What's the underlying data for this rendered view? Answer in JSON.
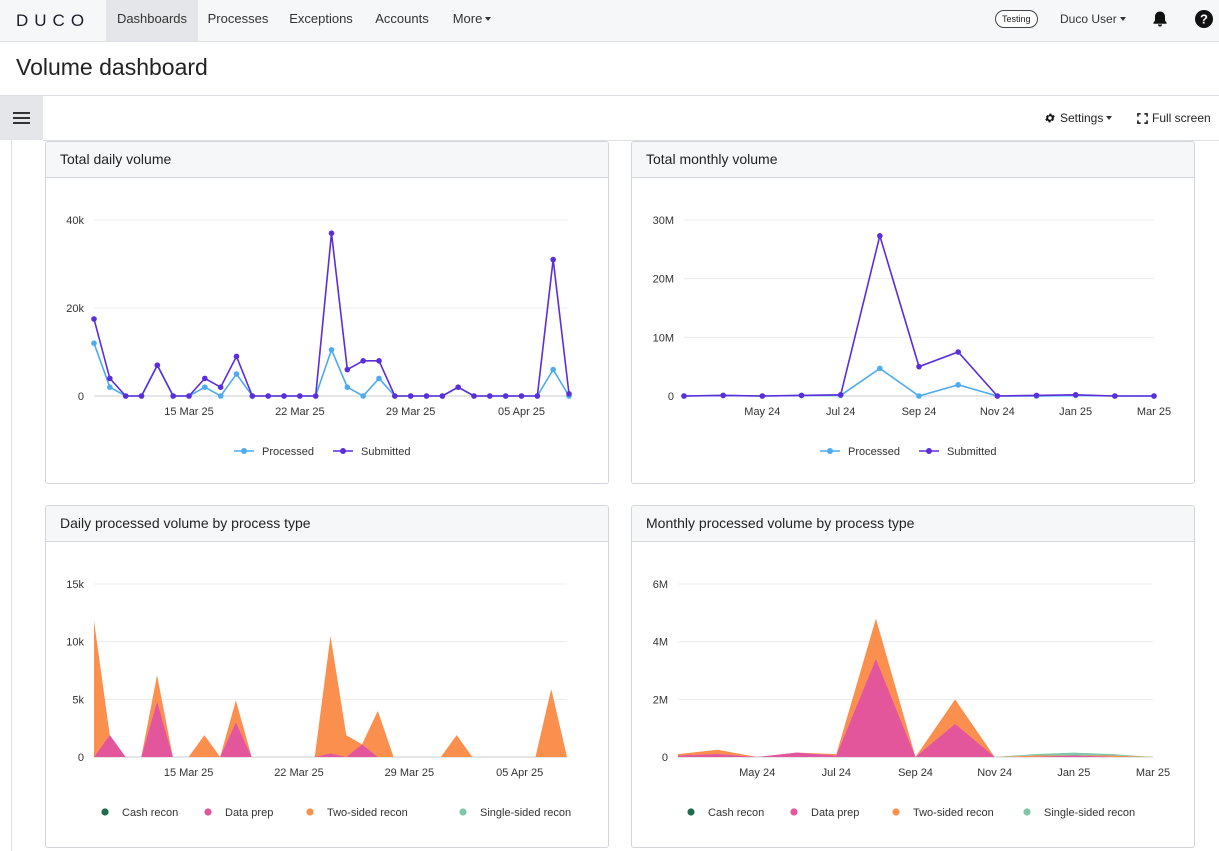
{
  "nav": {
    "logo": "DUCO",
    "tabs": [
      {
        "label": "Dashboards",
        "active": true
      },
      {
        "label": "Processes",
        "active": false
      },
      {
        "label": "Exceptions",
        "active": false
      },
      {
        "label": "Accounts",
        "active": false
      },
      {
        "label": "More",
        "active": false
      }
    ],
    "environment_badge": "Testing",
    "user_menu": "Duco User"
  },
  "page": {
    "title": "Volume dashboard"
  },
  "toolbar": {
    "settings_label": "Settings",
    "fullscreen_label": "Full screen"
  },
  "colors": {
    "processed": "#4dabf0",
    "submitted": "#5b2ed9",
    "cash_recon": "#1e6b4f",
    "data_prep": "#e3569b",
    "two_sided_recon": "#fb8f4e",
    "single_sided_recon": "#7fc7a8"
  },
  "panels": [
    {
      "title": "Total daily volume"
    },
    {
      "title": "Total monthly volume"
    },
    {
      "title": "Daily processed volume by process type"
    },
    {
      "title": "Monthly processed volume by process type"
    }
  ],
  "chart_data": [
    {
      "type": "line",
      "title": "Total daily volume",
      "x": [
        "2025-03-09",
        "2025-03-10",
        "2025-03-11",
        "2025-03-12",
        "2025-03-13",
        "2025-03-14",
        "2025-03-15",
        "2025-03-16",
        "2025-03-17",
        "2025-03-18",
        "2025-03-19",
        "2025-03-20",
        "2025-03-21",
        "2025-03-22",
        "2025-03-23",
        "2025-03-24",
        "2025-03-25",
        "2025-03-26",
        "2025-03-27",
        "2025-03-28",
        "2025-03-29",
        "2025-03-30",
        "2025-03-31",
        "2025-04-01",
        "2025-04-02",
        "2025-04-03",
        "2025-04-04",
        "2025-04-05",
        "2025-04-06",
        "2025-04-07",
        "2025-04-08"
      ],
      "x_ticks": [
        "15 Mar 25",
        "22 Mar 25",
        "29 Mar 25",
        "05 Apr 25"
      ],
      "y_ticks": [
        "0",
        "20k",
        "40k"
      ],
      "ylim": [
        0,
        40000
      ],
      "series": [
        {
          "name": "Processed",
          "values": [
            12000,
            2000,
            0,
            0,
            7000,
            0,
            0,
            2000,
            0,
            5000,
            0,
            0,
            0,
            0,
            0,
            10500,
            2000,
            0,
            4000,
            0,
            0,
            0,
            0,
            2000,
            0,
            0,
            0,
            0,
            0,
            6000,
            0
          ]
        },
        {
          "name": "Submitted",
          "values": [
            17500,
            4000,
            0,
            0,
            7000,
            0,
            0,
            4000,
            2000,
            9000,
            0,
            0,
            0,
            0,
            0,
            37000,
            6000,
            8000,
            8000,
            0,
            0,
            0,
            0,
            2000,
            0,
            0,
            0,
            0,
            0,
            31000,
            500
          ]
        }
      ],
      "legend": "bottom"
    },
    {
      "type": "line",
      "title": "Total monthly volume",
      "x": [
        "2024-03",
        "2024-04",
        "2024-05",
        "2024-06",
        "2024-07",
        "2024-08",
        "2024-09",
        "2024-10",
        "2024-11",
        "2024-12",
        "2025-01",
        "2025-02",
        "2025-03"
      ],
      "x_ticks": [
        "May 24",
        "Jul 24",
        "Sep 24",
        "Nov 24",
        "Jan 25",
        "Mar 25"
      ],
      "y_ticks": [
        "0",
        "10M",
        "20M",
        "30M"
      ],
      "ylim": [
        0,
        30000000
      ],
      "series": [
        {
          "name": "Processed",
          "values": [
            0,
            100000,
            0,
            100000,
            100000,
            4700000,
            0,
            1900000,
            0,
            0,
            100000,
            0,
            0
          ]
        },
        {
          "name": "Submitted",
          "values": [
            0,
            100000,
            0,
            100000,
            200000,
            27300000,
            5000000,
            7500000,
            0,
            100000,
            200000,
            0,
            0
          ]
        }
      ],
      "legend": "bottom"
    },
    {
      "type": "area",
      "title": "Daily processed volume by process type",
      "x": [
        "2025-03-09",
        "2025-03-10",
        "2025-03-11",
        "2025-03-12",
        "2025-03-13",
        "2025-03-14",
        "2025-03-15",
        "2025-03-16",
        "2025-03-17",
        "2025-03-18",
        "2025-03-19",
        "2025-03-20",
        "2025-03-21",
        "2025-03-22",
        "2025-03-23",
        "2025-03-24",
        "2025-03-25",
        "2025-03-26",
        "2025-03-27",
        "2025-03-28",
        "2025-03-29",
        "2025-03-30",
        "2025-03-31",
        "2025-04-01",
        "2025-04-02",
        "2025-04-03",
        "2025-04-04",
        "2025-04-05",
        "2025-04-06",
        "2025-04-07",
        "2025-04-08"
      ],
      "x_ticks": [
        "15 Mar 25",
        "22 Mar 25",
        "29 Mar 25",
        "05 Apr 25"
      ],
      "y_ticks": [
        "0",
        "5k",
        "10k",
        "15k"
      ],
      "ylim": [
        0,
        15000
      ],
      "stacked": true,
      "series": [
        {
          "name": "Cash recon",
          "values": [
            0,
            0,
            0,
            0,
            0,
            0,
            0,
            0,
            0,
            0,
            0,
            0,
            0,
            0,
            0,
            0,
            0,
            0,
            0,
            0,
            0,
            0,
            0,
            0,
            0,
            0,
            0,
            0,
            0,
            0,
            0
          ]
        },
        {
          "name": "Data prep",
          "values": [
            0,
            1900,
            0,
            0,
            4800,
            0,
            0,
            0,
            0,
            3000,
            0,
            0,
            0,
            0,
            0,
            300,
            0,
            1100,
            0,
            0,
            0,
            0,
            0,
            0,
            0,
            0,
            0,
            0,
            0,
            0,
            0
          ]
        },
        {
          "name": "Two-sided recon",
          "values": [
            11800,
            0,
            0,
            0,
            2300,
            0,
            0,
            1900,
            0,
            1900,
            0,
            0,
            0,
            0,
            0,
            10200,
            1900,
            0,
            4000,
            0,
            0,
            0,
            0,
            1900,
            0,
            0,
            0,
            0,
            0,
            5900,
            0
          ]
        },
        {
          "name": "Single-sided recon",
          "values": [
            0,
            0,
            0,
            0,
            0,
            0,
            0,
            0,
            0,
            0,
            0,
            0,
            0,
            0,
            0,
            0,
            0,
            0,
            0,
            0,
            0,
            0,
            0,
            0,
            0,
            0,
            0,
            0,
            0,
            0,
            0
          ]
        }
      ],
      "legend": "bottom"
    },
    {
      "type": "area",
      "title": "Monthly processed volume by process type",
      "x": [
        "2024-03",
        "2024-04",
        "2024-05",
        "2024-06",
        "2024-07",
        "2024-08",
        "2024-09",
        "2024-10",
        "2024-11",
        "2024-12",
        "2025-01",
        "2025-02",
        "2025-03"
      ],
      "x_ticks": [
        "May 24",
        "Jul 24",
        "Sep 24",
        "Nov 24",
        "Jan 25",
        "Mar 25"
      ],
      "y_ticks": [
        "0",
        "2M",
        "4M",
        "6M"
      ],
      "ylim": [
        0,
        6000000
      ],
      "stacked": true,
      "series": [
        {
          "name": "Cash recon",
          "values": [
            0,
            0,
            0,
            0,
            0,
            0,
            0,
            0,
            0,
            0,
            0,
            0,
            0
          ]
        },
        {
          "name": "Data prep",
          "values": [
            50000,
            100000,
            0,
            150000,
            50000,
            3400000,
            0,
            1150000,
            0,
            0,
            50000,
            0,
            0
          ]
        },
        {
          "name": "Two-sided recon",
          "values": [
            50000,
            150000,
            0,
            0,
            50000,
            1400000,
            0,
            850000,
            0,
            50000,
            0,
            50000,
            0
          ]
        },
        {
          "name": "Single-sided recon",
          "values": [
            0,
            0,
            0,
            0,
            0,
            0,
            0,
            0,
            0,
            50000,
            100000,
            50000,
            0
          ]
        }
      ],
      "legend": "bottom"
    }
  ]
}
